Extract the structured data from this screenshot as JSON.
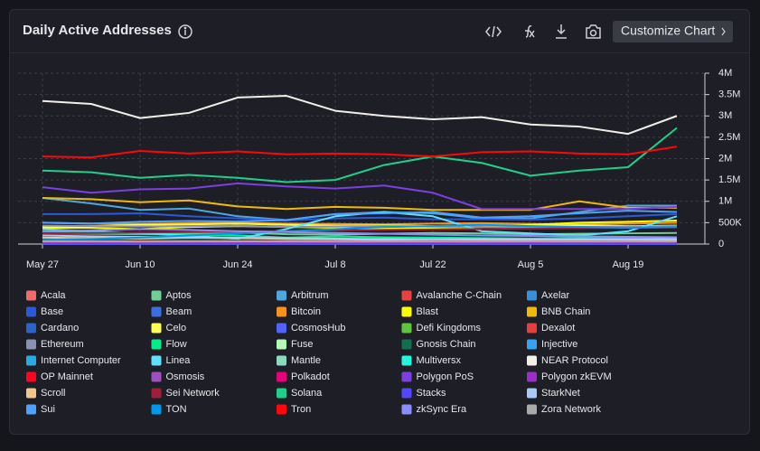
{
  "chart_data": {
    "type": "line",
    "title": "Daily Active Addresses",
    "categories": [
      "May 27",
      null,
      "Jun 10",
      null,
      "Jun 24",
      null,
      "Jul 8",
      null,
      "Jul 22",
      null,
      "Aug 5",
      null,
      "Aug 19",
      null
    ],
    "ylim": [
      0,
      4000000
    ],
    "yticks": [
      0,
      {
        "value": 500000,
        "label": "500K"
      },
      {
        "value": 1000000,
        "label": "1M"
      },
      {
        "value": 1500000,
        "label": "1.5M"
      },
      {
        "value": 2000000,
        "label": "2M"
      },
      {
        "value": 2500000,
        "label": "2.5M"
      },
      {
        "value": 3000000,
        "label": "3M"
      },
      {
        "value": 3500000,
        "label": "3.5M"
      },
      {
        "value": 4000000,
        "label": "4M"
      }
    ],
    "grid": true,
    "series": [
      {
        "name": "Acala",
        "color": "#f26b6b",
        "values": [
          5000,
          5000,
          4000,
          5000,
          5000,
          4000,
          5000,
          5000,
          4000,
          5000,
          5000,
          4000,
          5000,
          5000
        ]
      },
      {
        "name": "Aptos",
        "color": "#6fcf97",
        "values": [
          300000,
          280000,
          260000,
          250000,
          270000,
          230000,
          220000,
          240000,
          260000,
          250000,
          230000,
          240000,
          250000,
          260000
        ]
      },
      {
        "name": "Arbitrum",
        "color": "#4ea8de",
        "values": [
          1080000,
          950000,
          800000,
          830000,
          650000,
          560000,
          700000,
          750000,
          720000,
          600000,
          600000,
          750000,
          900000,
          900000
        ]
      },
      {
        "name": "Avalanche C-Chain",
        "color": "#e84142",
        "values": [
          60000,
          55000,
          58000,
          60000,
          62000,
          57000,
          55000,
          60000,
          58000,
          56000,
          55000,
          57000,
          60000,
          58000
        ]
      },
      {
        "name": "Axelar",
        "color": "#3b8fd9",
        "values": [
          10000,
          11000,
          10000,
          12000,
          11000,
          10000,
          9000,
          10000,
          11000,
          10000,
          9000,
          10000,
          11000,
          10000
        ]
      },
      {
        "name": "Base",
        "color": "#2a5ada",
        "values": [
          700000,
          700000,
          720000,
          650000,
          600000,
          550000,
          600000,
          620000,
          580000,
          580000,
          570000,
          600000,
          650000,
          700000
        ]
      },
      {
        "name": "Beam",
        "color": "#3b6fe0",
        "values": [
          20000,
          21000,
          20000,
          19000,
          20000,
          21000,
          20000,
          19000,
          20000,
          21000,
          20000,
          19000,
          20000,
          21000
        ]
      },
      {
        "name": "Bitcoin",
        "color": "#f7931a",
        "values": [
          500000,
          480000,
          470000,
          490000,
          500000,
          480000,
          470000,
          460000,
          480000,
          490000,
          470000,
          460000,
          480000,
          500000
        ]
      },
      {
        "name": "Blast",
        "color": "#fcfc03",
        "values": [
          380000,
          380000,
          350000,
          400000,
          420000,
          400000,
          380000,
          360000,
          380000,
          400000,
          450000,
          500000,
          520000,
          550000
        ]
      },
      {
        "name": "BNB Chain",
        "color": "#f0b90b",
        "values": [
          1080000,
          1050000,
          980000,
          1020000,
          880000,
          820000,
          870000,
          850000,
          800000,
          800000,
          800000,
          1000000,
          850000,
          850000
        ]
      },
      {
        "name": "Cardano",
        "color": "#2a63c9",
        "values": [
          60000,
          62000,
          58000,
          60000,
          61000,
          59000,
          60000,
          58000,
          57000,
          60000,
          59000,
          58000,
          60000,
          61000
        ]
      },
      {
        "name": "Celo",
        "color": "#fcff52",
        "values": [
          400000,
          420000,
          450000,
          460000,
          480000,
          450000,
          430000,
          440000,
          420000,
          450000,
          430000,
          440000,
          420000,
          430000
        ]
      },
      {
        "name": "CosmosHub",
        "color": "#5064fb",
        "values": [
          15000,
          16000,
          15000,
          14000,
          15000,
          16000,
          15000,
          14000,
          15000,
          16000,
          15000,
          14000,
          15000,
          16000
        ]
      },
      {
        "name": "Defi Kingdoms",
        "color": "#5ec43b",
        "values": [
          8000,
          8000,
          7000,
          8000,
          8000,
          7000,
          8000,
          8000,
          7000,
          8000,
          8000,
          7000,
          8000,
          8000
        ]
      },
      {
        "name": "Dexalot",
        "color": "#e83e3e",
        "values": [
          2000,
          2000,
          2000,
          2000,
          2000,
          2000,
          2000,
          2000,
          2000,
          2000,
          2000,
          2000,
          2000,
          2000
        ]
      },
      {
        "name": "Ethereum",
        "color": "#8a92b2",
        "values": [
          430000,
          420000,
          410000,
          420000,
          430000,
          400000,
          410000,
          420000,
          410000,
          400000,
          390000,
          400000,
          410000,
          420000
        ]
      },
      {
        "name": "Flow",
        "color": "#00ef8b",
        "values": [
          250000,
          240000,
          230000,
          220000,
          200000,
          150000,
          180000,
          160000,
          150000,
          140000,
          130000,
          140000,
          150000,
          160000
        ]
      },
      {
        "name": "Fuse",
        "color": "#b4f9ba",
        "values": [
          10000,
          10000,
          11000,
          10000,
          10000,
          11000,
          10000,
          10000,
          11000,
          10000,
          10000,
          11000,
          10000,
          10000
        ]
      },
      {
        "name": "Gnosis Chain",
        "color": "#136f4f",
        "values": [
          100000,
          98000,
          102000,
          100000,
          97000,
          99000,
          101000,
          100000,
          98000,
          99000,
          100000,
          97000,
          99000,
          100000
        ]
      },
      {
        "name": "Injective",
        "color": "#35a3f0",
        "values": [
          30000,
          31000,
          29000,
          30000,
          32000,
          30000,
          29000,
          31000,
          30000,
          29000,
          30000,
          31000,
          30000,
          29000
        ]
      },
      {
        "name": "Internet Computer",
        "color": "#29abe2",
        "values": [
          3000,
          3000,
          3000,
          3000,
          3000,
          3000,
          3000,
          3000,
          3000,
          3000,
          3000,
          3000,
          3000,
          3000
        ]
      },
      {
        "name": "Linea",
        "color": "#61dfff",
        "values": [
          350000,
          300000,
          250000,
          200000,
          120000,
          350000,
          650000,
          750000,
          650000,
          300000,
          250000,
          200000,
          300000,
          650000
        ]
      },
      {
        "name": "Mantle",
        "color": "#8ed8c3",
        "values": [
          40000,
          41000,
          39000,
          40000,
          42000,
          40000,
          39000,
          41000,
          40000,
          39000,
          40000,
          41000,
          40000,
          39000
        ]
      },
      {
        "name": "Multiversx",
        "color": "#23f7dd",
        "values": [
          50000,
          51000,
          49000,
          50000,
          52000,
          50000,
          49000,
          51000,
          50000,
          49000,
          50000,
          51000,
          50000,
          49000
        ]
      },
      {
        "name": "NEAR Protocol",
        "color": "#f2efe9",
        "values": [
          3350000,
          3280000,
          2950000,
          3070000,
          3430000,
          3470000,
          3120000,
          3000000,
          2920000,
          2970000,
          2800000,
          2750000,
          2580000,
          3000000
        ]
      },
      {
        "name": "OP Mainnet",
        "color": "#ff0420",
        "values": [
          80000,
          82000,
          78000,
          80000,
          81000,
          79000,
          80000,
          78000,
          77000,
          80000,
          79000,
          78000,
          80000,
          81000
        ]
      },
      {
        "name": "Osmosis",
        "color": "#9f4fbf",
        "values": [
          20000,
          21000,
          20000,
          19000,
          20000,
          21000,
          20000,
          19000,
          20000,
          21000,
          20000,
          19000,
          20000,
          21000
        ]
      },
      {
        "name": "Polkadot",
        "color": "#e6007a",
        "values": [
          15000,
          15000,
          14000,
          15000,
          15000,
          14000,
          15000,
          15000,
          14000,
          15000,
          15000,
          14000,
          15000,
          15000
        ]
      },
      {
        "name": "Polygon PoS",
        "color": "#7b3fe4",
        "values": [
          1330000,
          1200000,
          1280000,
          1300000,
          1420000,
          1350000,
          1300000,
          1370000,
          1200000,
          820000,
          820000,
          820000,
          820000,
          870000
        ]
      },
      {
        "name": "Polygon zkEVM",
        "color": "#9b2ec6",
        "values": [
          10000,
          10000,
          10000,
          10000,
          10000,
          10000,
          10000,
          10000,
          10000,
          10000,
          10000,
          10000,
          10000,
          10000
        ]
      },
      {
        "name": "Scroll",
        "color": "#f0c98a",
        "values": [
          150000,
          140000,
          130000,
          150000,
          140000,
          120000,
          110000,
          100000,
          110000,
          100000,
          100000,
          110000,
          100000,
          90000
        ]
      },
      {
        "name": "Sei Network",
        "color": "#9e1f37",
        "values": [
          250000,
          260000,
          270000,
          280000,
          290000,
          300000,
          320000,
          330000,
          340000,
          350000,
          360000,
          370000,
          380000,
          390000
        ]
      },
      {
        "name": "Solana",
        "color": "#1fd08a",
        "values": [
          1720000,
          1680000,
          1550000,
          1620000,
          1550000,
          1450000,
          1500000,
          1850000,
          2050000,
          1900000,
          1600000,
          1720000,
          1800000,
          2720000
        ]
      },
      {
        "name": "Stacks",
        "color": "#5546ff",
        "values": [
          5000,
          5000,
          5000,
          5000,
          5000,
          5000,
          5000,
          5000,
          5000,
          5000,
          5000,
          5000,
          5000,
          5000
        ]
      },
      {
        "name": "StarkNet",
        "color": "#a8c8f8",
        "values": [
          200000,
          180000,
          170000,
          160000,
          150000,
          140000,
          130000,
          120000,
          110000,
          120000,
          110000,
          100000,
          110000,
          120000
        ]
      },
      {
        "name": "Sui",
        "color": "#4da2ff",
        "values": [
          500000,
          480000,
          520000,
          540000,
          530000,
          560000,
          700000,
          720000,
          750000,
          620000,
          650000,
          720000,
          780000,
          750000
        ]
      },
      {
        "name": "TON",
        "color": "#0098ea",
        "values": [
          100000,
          120000,
          150000,
          200000,
          250000,
          300000,
          350000,
          400000,
          420000,
          450000,
          420000,
          400000,
          380000,
          400000
        ]
      },
      {
        "name": "Tron",
        "color": "#ff060a",
        "values": [
          2050000,
          2030000,
          2180000,
          2120000,
          2170000,
          2100000,
          2120000,
          2100000,
          2050000,
          2150000,
          2170000,
          2120000,
          2100000,
          2280000
        ]
      },
      {
        "name": "zkSync Era",
        "color": "#8c8dfc",
        "values": [
          300000,
          320000,
          350000,
          330000,
          300000,
          280000,
          260000,
          240000,
          220000,
          200000,
          190000,
          180000,
          170000,
          160000
        ]
      },
      {
        "name": "Zora Network",
        "color": "#aaaaaa",
        "values": [
          60000,
          61000,
          59000,
          60000,
          62000,
          60000,
          59000,
          61000,
          60000,
          59000,
          60000,
          61000,
          60000,
          59000
        ]
      }
    ]
  },
  "toolbar": {
    "button": "Customize Chart"
  }
}
